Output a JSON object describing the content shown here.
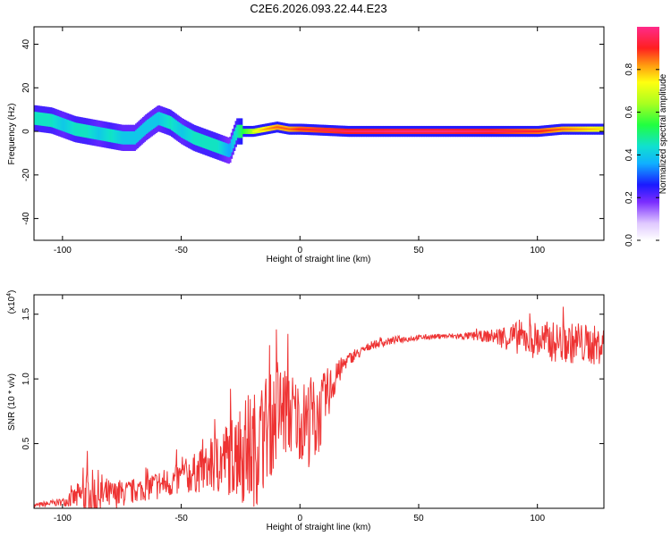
{
  "figure_title": "C2E6.2026.093.22.44.E23",
  "chart_data": [
    {
      "type": "heatmap",
      "title": "C2E6.2026.093.22.44.E23",
      "xlabel": "Height of straight line (km)",
      "ylabel": "Frequency (Hz)",
      "xlim": [
        -112,
        128
      ],
      "ylim": [
        -50,
        48
      ],
      "xticks": [
        -100,
        -50,
        0,
        50,
        100
      ],
      "xtick_labels": [
        "-100",
        "-50",
        "0",
        "50",
        "100"
      ],
      "yticks": [
        -40,
        -20,
        0,
        20,
        40
      ],
      "ytick_labels": [
        "-40",
        "-20",
        "0",
        "20",
        "40"
      ],
      "colorbar": {
        "label": "Normalized spectral amplitude",
        "range": [
          0,
          1
        ],
        "ticks": [
          0.0,
          0.2,
          0.4,
          0.6,
          0.8
        ],
        "tick_labels": [
          "0.0",
          "0.2",
          "0.4",
          "0.6",
          "0.8"
        ]
      },
      "ridge": {
        "x": [
          -112,
          -105,
          -100,
          -95,
          -90,
          -85,
          -80,
          -75,
          -70,
          -65,
          -60,
          -55,
          -50,
          -45,
          -40,
          -35,
          -30,
          -27,
          -24,
          -20,
          -15,
          -10,
          -5,
          0,
          10,
          20,
          40,
          60,
          80,
          100,
          110,
          120,
          128
        ],
        "freq": [
          6,
          5,
          3,
          1,
          0,
          -1,
          -2,
          -3,
          -3,
          2,
          6,
          4,
          0,
          -3,
          -5,
          -7,
          -9,
          0,
          0,
          0,
          1,
          2,
          1,
          1,
          0.5,
          0,
          0,
          0,
          0,
          0,
          1,
          1,
          1
        ],
        "amplitude": [
          0.45,
          0.45,
          0.4,
          0.45,
          0.45,
          0.4,
          0.45,
          0.4,
          0.4,
          0.4,
          0.4,
          0.45,
          0.4,
          0.45,
          0.45,
          0.45,
          0.35,
          0.45,
          0.55,
          0.65,
          0.75,
          0.8,
          0.8,
          0.85,
          0.88,
          0.9,
          0.92,
          0.92,
          0.9,
          0.85,
          0.8,
          0.75,
          0.7
        ]
      }
    },
    {
      "type": "line",
      "xlabel": "Height of straight line (km)",
      "ylabel": "SNR (10 * v/v)",
      "y_multiplier": "(x10",
      "y_multiplier_exp": "4",
      "y_multiplier_close": ")",
      "xlim": [
        -112,
        128
      ],
      "ylim": [
        0.0,
        1.65
      ],
      "xticks": [
        -100,
        -50,
        0,
        50,
        100
      ],
      "xtick_labels": [
        "-100",
        "-50",
        "0",
        "50",
        "100"
      ],
      "yticks": [
        0.5,
        1.0,
        1.5
      ],
      "ytick_labels": [
        "0.5",
        "1.0",
        "1.5"
      ],
      "series": [
        {
          "name": "SNR",
          "color": "#ee3333",
          "x": [
            -112,
            -100,
            -95,
            -90,
            -85,
            -80,
            -75,
            -70,
            -65,
            -60,
            -55,
            -50,
            -45,
            -40,
            -35,
            -30,
            -27,
            -25,
            -22,
            -20,
            -17,
            -15,
            -12,
            -10,
            -8,
            -5,
            -3,
            0,
            3,
            5,
            7,
            10,
            12,
            15,
            18,
            20,
            25,
            30,
            40,
            50,
            60,
            70,
            80,
            90,
            100,
            110,
            120,
            128
          ],
          "values": [
            0.02,
            0.05,
            0.08,
            0.1,
            0.1,
            0.1,
            0.11,
            0.13,
            0.16,
            0.18,
            0.2,
            0.23,
            0.27,
            0.3,
            0.35,
            0.4,
            0.43,
            0.45,
            0.45,
            0.45,
            0.5,
            0.6,
            0.65,
            0.72,
            0.75,
            0.75,
            0.72,
            0.68,
            0.65,
            0.7,
            0.65,
            0.8,
            0.9,
            1.0,
            1.1,
            1.15,
            1.2,
            1.26,
            1.3,
            1.32,
            1.33,
            1.33,
            1.33,
            1.32,
            1.3,
            1.28,
            1.27,
            1.25
          ],
          "noise_amplitude": [
            0.02,
            0.03,
            0.08,
            0.2,
            0.2,
            0.12,
            0.1,
            0.1,
            0.1,
            0.12,
            0.12,
            0.14,
            0.15,
            0.18,
            0.25,
            0.3,
            0.35,
            0.4,
            0.45,
            0.45,
            0.45,
            0.45,
            0.4,
            0.4,
            0.4,
            0.35,
            0.35,
            0.3,
            0.35,
            0.35,
            0.3,
            0.25,
            0.2,
            0.12,
            0.08,
            0.05,
            0.04,
            0.03,
            0.03,
            0.02,
            0.02,
            0.03,
            0.05,
            0.12,
            0.15,
            0.16,
            0.16,
            0.15
          ]
        }
      ]
    }
  ]
}
